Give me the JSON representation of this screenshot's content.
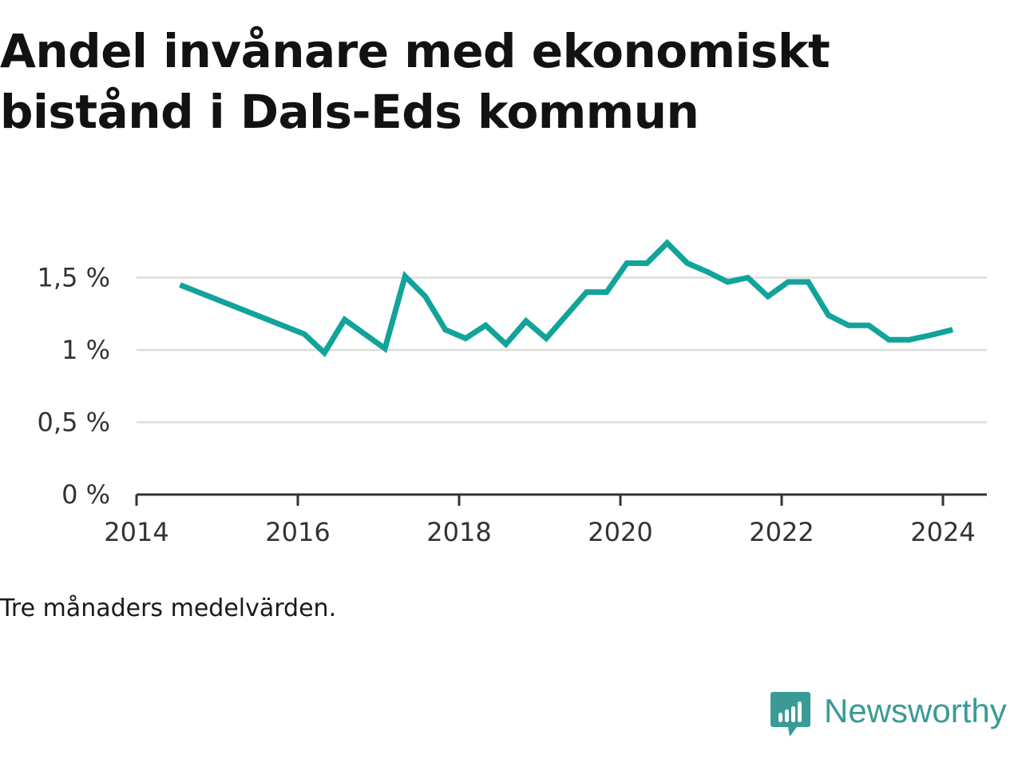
{
  "title": "Andel invånare med ekonomiskt bistånd i Dals-Eds kommun",
  "note": "Tre månaders medelvärden.",
  "brand": {
    "name": "Newsworthy",
    "icon": "newsworthy-logo-icon",
    "color": "#3a9b96"
  },
  "colors": {
    "line": "#12a39a",
    "grid": "#dddddd",
    "axis": "#333333"
  },
  "chart_data": {
    "type": "line",
    "title": "Andel invånare med ekonomiskt bistånd i Dals-Eds kommun",
    "xlabel": "",
    "ylabel": "",
    "xlim": [
      2014,
      2024.6
    ],
    "ylim": [
      0,
      1.8
    ],
    "grid": true,
    "legend": "none",
    "x_ticks": [
      2014,
      2016,
      2018,
      2020,
      2022,
      2024
    ],
    "x_tick_labels": [
      "2014",
      "2016",
      "2018",
      "2020",
      "2022",
      "2024"
    ],
    "y_ticks": [
      0,
      0.5,
      1,
      1.5
    ],
    "y_tick_labels": [
      "0 %",
      "0,5 %",
      "1 %",
      "1,5 %"
    ],
    "series": [
      {
        "name": "",
        "color": "#12a39a",
        "x": [
          2014.54,
          2016.08,
          2016.33,
          2016.58,
          2017.08,
          2017.33,
          2017.58,
          2017.83,
          2018.08,
          2018.33,
          2018.58,
          2018.83,
          2019.08,
          2019.33,
          2019.58,
          2019.83,
          2020.08,
          2020.33,
          2020.58,
          2020.83,
          2021.08,
          2021.33,
          2021.58,
          2021.83,
          2022.08,
          2022.33,
          2022.58,
          2022.83,
          2023.08,
          2023.33,
          2023.58,
          2023.83,
          2024.12
        ],
        "values": [
          1.45,
          1.11,
          0.98,
          1.21,
          1.01,
          1.51,
          1.37,
          1.14,
          1.08,
          1.17,
          1.04,
          1.2,
          1.08,
          1.24,
          1.4,
          1.4,
          1.6,
          1.6,
          1.74,
          1.6,
          1.54,
          1.47,
          1.5,
          1.37,
          1.47,
          1.47,
          1.24,
          1.17,
          1.17,
          1.07,
          1.07,
          1.1,
          1.14
        ]
      }
    ]
  }
}
